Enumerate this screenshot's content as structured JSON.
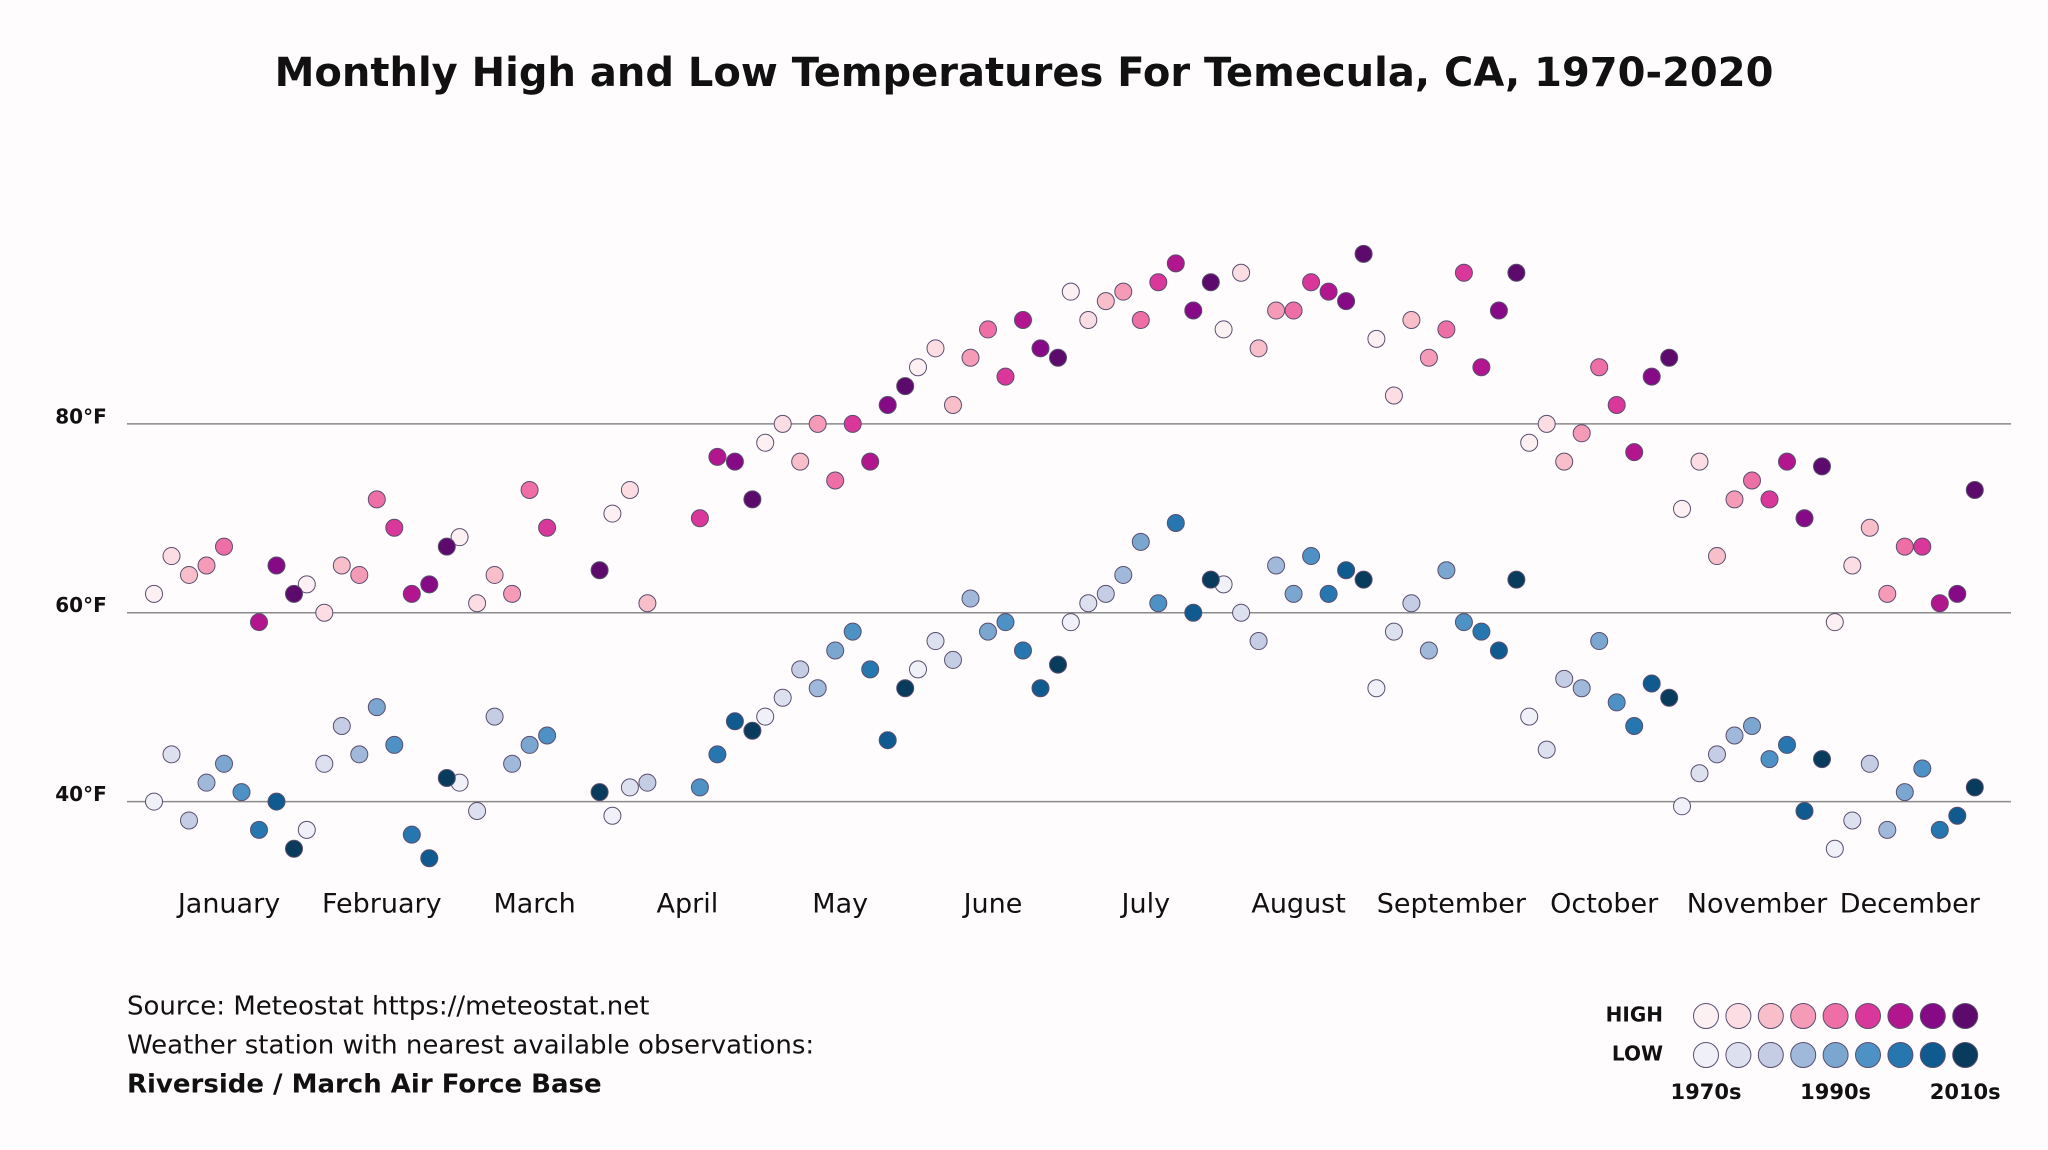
{
  "chart_data": {
    "type": "scatter",
    "title": "Monthly High and Low Temperatures For Temecula, CA, 1970-2020",
    "categories": [
      "January",
      "February",
      "March",
      "April",
      "May",
      "June",
      "July",
      "August",
      "September",
      "October",
      "November",
      "December"
    ],
    "ylim": [
      30,
      100
    ],
    "yticks": [
      {
        "value": 40,
        "label": "40°F"
      },
      {
        "value": 60,
        "label": "60°F"
      },
      {
        "value": 80,
        "label": "80°F"
      }
    ],
    "grid": true,
    "high": [
      {
        "color": "#fdf0f3",
        "values": [
          62,
          63,
          68,
          70.5,
          78,
          86,
          94,
          90,
          89,
          78,
          71,
          59
        ]
      },
      {
        "color": "#fbdde3",
        "values": [
          66,
          60,
          61,
          73,
          80,
          88,
          91,
          96,
          83,
          80,
          76,
          65
        ]
      },
      {
        "color": "#f8bfca",
        "values": [
          64,
          65,
          64,
          61,
          76,
          82,
          93,
          88,
          91,
          76,
          66,
          69
        ]
      },
      {
        "color": "#f59bb8",
        "values": [
          65,
          64,
          62,
          null,
          80,
          87,
          94,
          92,
          87,
          79,
          72,
          62
        ]
      },
      {
        "color": "#ee6fa5",
        "values": [
          67,
          72,
          73,
          null,
          74,
          90,
          91,
          92,
          90,
          86,
          74,
          67
        ]
      },
      {
        "color": "#d9389a",
        "values": [
          null,
          69,
          69,
          70,
          80,
          85,
          95,
          95,
          96,
          82,
          72,
          67
        ]
      },
      {
        "color": "#b1168e",
        "values": [
          59,
          62,
          null,
          76.5,
          76,
          91,
          97,
          94,
          86,
          77,
          76,
          61
        ]
      },
      {
        "color": "#860a85",
        "values": [
          65,
          63,
          null,
          76,
          82,
          88,
          92,
          93,
          92,
          85,
          70,
          62
        ]
      },
      {
        "color": "#5c0a6b",
        "values": [
          62,
          67,
          64.5,
          72,
          84,
          87,
          95,
          98,
          96,
          87,
          75.5,
          73
        ]
      }
    ],
    "low": [
      {
        "color": "#f0f1f8",
        "values": [
          40,
          37,
          42,
          38.5,
          49,
          54,
          59,
          63,
          52,
          49,
          39.5,
          35
        ]
      },
      {
        "color": "#dde1ef",
        "values": [
          45,
          44,
          39,
          41.5,
          51,
          57,
          61,
          60,
          58,
          45.5,
          43,
          38
        ]
      },
      {
        "color": "#c4cde4",
        "values": [
          38,
          48,
          49,
          42,
          54,
          55,
          62,
          57,
          61,
          53,
          45,
          44
        ]
      },
      {
        "color": "#a0b8d9",
        "values": [
          42,
          45,
          44,
          null,
          52,
          61.5,
          64,
          65,
          56,
          52,
          47,
          37
        ]
      },
      {
        "color": "#7aa6cf",
        "values": [
          44,
          50,
          46,
          null,
          56,
          58,
          67.5,
          62,
          64.5,
          57,
          48,
          41
        ]
      },
      {
        "color": "#4e91c4",
        "values": [
          41,
          46,
          47,
          41.5,
          58,
          59,
          61,
          66,
          59,
          50.5,
          44.5,
          43.5
        ]
      },
      {
        "color": "#2677b0",
        "values": [
          37,
          36.5,
          null,
          45,
          54,
          56,
          69.5,
          62,
          58,
          48,
          46,
          37
        ]
      },
      {
        "color": "#0f5a8e",
        "values": [
          40,
          34,
          null,
          48.5,
          46.5,
          52,
          60,
          64.5,
          56,
          52.5,
          39,
          38.5
        ]
      },
      {
        "color": "#083b5c",
        "values": [
          35,
          42.5,
          41,
          47.5,
          52,
          54.5,
          63.5,
          63.5,
          63.5,
          51,
          44.5,
          41.5
        ]
      }
    ],
    "legend": {
      "rows": [
        "HIGH",
        "LOW"
      ],
      "labels": [
        "1970s",
        null,
        null,
        null,
        "1990s",
        null,
        null,
        null,
        "2010s"
      ]
    },
    "source_lines": [
      "Source: Meteostat https://meteostat.net",
      "Weather station with nearest available observations:",
      "Riverside / March Air Force Base"
    ]
  }
}
